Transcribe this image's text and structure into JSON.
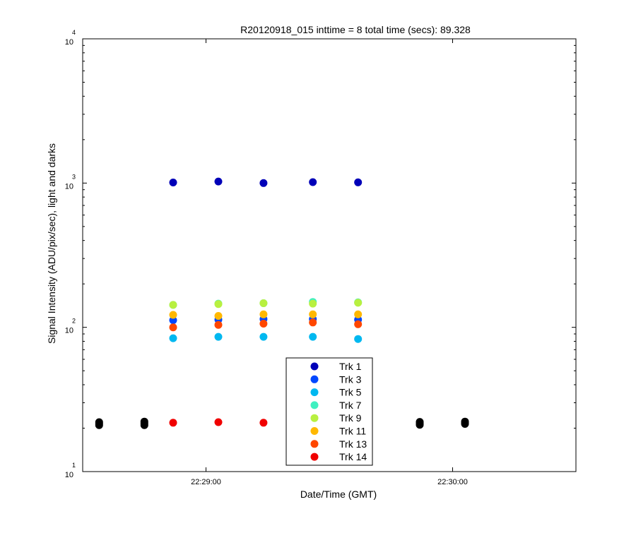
{
  "chart_data": {
    "type": "scatter",
    "title": "R20120918_015 inttime = 8 total time (secs): 89.328",
    "xlabel": "Date/Time (GMT)",
    "ylabel": "Signal Intensity (ADU/pix/sec), light and darks",
    "yscale": "log",
    "ylim": [
      10,
      10000
    ],
    "y_ticks": [
      {
        "base": "10",
        "exp": "1",
        "value": 10
      },
      {
        "base": "10",
        "exp": "2",
        "value": 100
      },
      {
        "base": "10",
        "exp": "3",
        "value": 1000
      },
      {
        "base": "10",
        "exp": "4",
        "value": 10000
      }
    ],
    "xlim": [
      "22:28:30",
      "22:30:30"
    ],
    "x_ticks": [
      "22:29:00",
      "22:30:00"
    ],
    "grid": false,
    "legend_placement": "bottom-center",
    "series": [
      {
        "name": "Trk 1",
        "color": "#0000b8",
        "x": [
          "22:28:52",
          "22:29:03",
          "22:29:14",
          "22:29:26",
          "22:29:37"
        ],
        "y": [
          1010,
          1025,
          1000,
          1015,
          1012
        ]
      },
      {
        "name": "Trk 3",
        "color": "#0047ff",
        "x": [
          "22:28:52",
          "22:29:03",
          "22:29:14",
          "22:29:26",
          "22:29:37"
        ],
        "y": [
          112,
          113,
          114,
          114,
          113
        ]
      },
      {
        "name": "Trk 5",
        "color": "#00b8f0",
        "x": [
          "22:28:52",
          "22:29:03",
          "22:29:14",
          "22:29:26",
          "22:29:37"
        ],
        "y": [
          84,
          86,
          86,
          86,
          83
        ]
      },
      {
        "name": "Trk 7",
        "color": "#40f0c0",
        "x": [
          "22:28:52",
          "22:29:03",
          "22:29:14",
          "22:29:26",
          "22:29:37"
        ],
        "y": [
          143,
          146,
          147,
          150,
          149
        ]
      },
      {
        "name": "Trk 9",
        "color": "#b8f040",
        "x": [
          "22:28:52",
          "22:29:03",
          "22:29:14",
          "22:29:26",
          "22:29:37"
        ],
        "y": [
          143,
          145,
          147,
          146,
          148
        ]
      },
      {
        "name": "Trk 11",
        "color": "#ffb800",
        "x": [
          "22:28:52",
          "22:29:03",
          "22:29:14",
          "22:29:26",
          "22:29:37"
        ],
        "y": [
          122,
          120,
          123,
          123,
          123
        ]
      },
      {
        "name": "Trk 13",
        "color": "#ff4700",
        "x": [
          "22:28:52",
          "22:29:03",
          "22:29:14",
          "22:29:26",
          "22:29:37"
        ],
        "y": [
          100,
          104,
          106,
          108,
          105
        ]
      },
      {
        "name": "Trk 14",
        "color": "#f00000",
        "x": [
          "22:28:52",
          "22:29:03",
          "22:29:14",
          "22:29:26",
          "22:29:37"
        ],
        "y": [
          21.8,
          22.0,
          21.8,
          21.8,
          22.0
        ]
      },
      {
        "color": "#000000",
        "x": [
          "22:28:34",
          "22:28:34",
          "22:28:34",
          "22:28:45",
          "22:28:45",
          "22:28:45",
          "22:29:52",
          "22:29:52",
          "22:29:52",
          "22:30:03",
          "22:30:03",
          "22:30:03"
        ],
        "y": [
          21.0,
          21.5,
          22.0,
          21.0,
          21.6,
          22.2,
          21.1,
          21.6,
          22.1,
          21.4,
          21.8,
          22.2
        ]
      }
    ]
  }
}
